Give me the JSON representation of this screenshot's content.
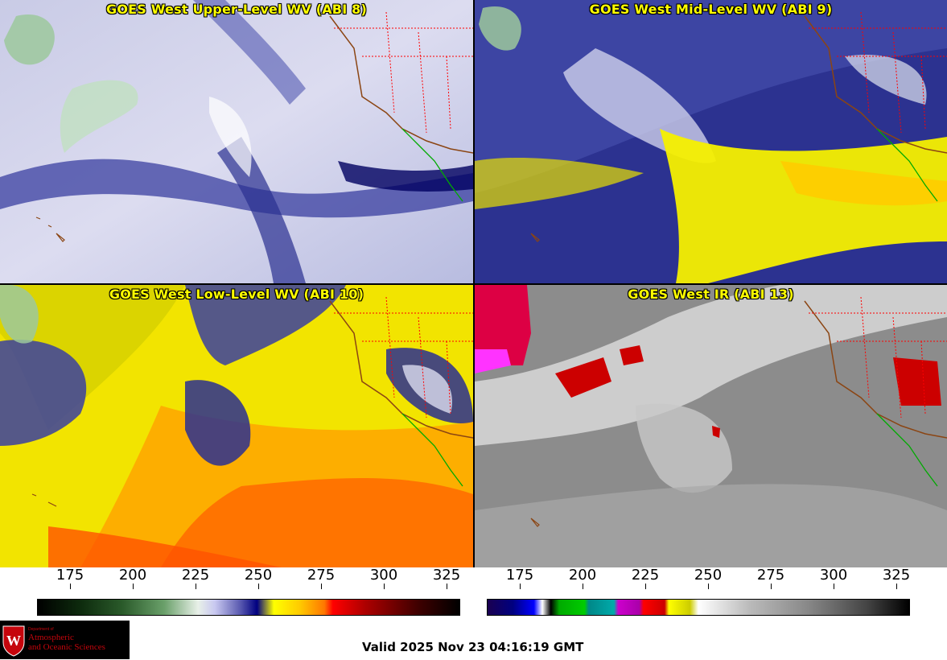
{
  "panels": [
    {
      "title": "GOES West Upper-Level WV (ABI 8)"
    },
    {
      "title": "GOES West Mid-Level WV (ABI 9)"
    },
    {
      "title": "GOES West Low-Level WV (ABI 10)"
    },
    {
      "title": "GOES West IR (ABI 13)"
    }
  ],
  "colorbar_wv": {
    "ticks": [
      "175",
      "200",
      "225",
      "250",
      "275",
      "300",
      "325"
    ]
  },
  "colorbar_ir": {
    "ticks": [
      "175",
      "200",
      "225",
      "250",
      "275",
      "300",
      "325"
    ]
  },
  "logo": {
    "dept": "Department of",
    "line1": "Atmospheric",
    "line2": "and Oceanic Sciences"
  },
  "valid_time": "Valid 2025 Nov 23 04:16:19 GMT",
  "colors": {
    "title_text": "#ffff00",
    "coast": "#8b4513",
    "border_mexico": "#00aa00",
    "state_border": "#ff0000",
    "logo_red": "#c5050c"
  }
}
